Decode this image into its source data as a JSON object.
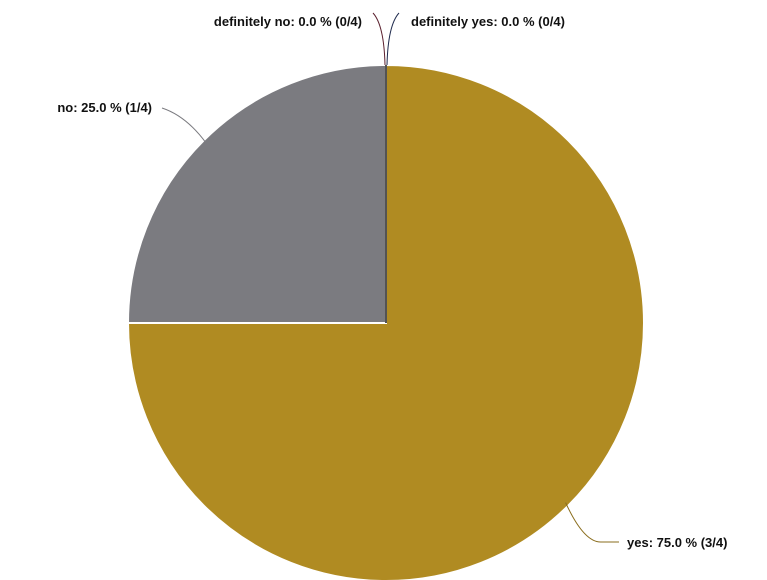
{
  "chart_data": {
    "type": "pie",
    "total": 4,
    "slices": [
      {
        "name": "yes",
        "value": 3,
        "percent": 75.0,
        "label": "yes: 75.0 % (3/4)",
        "color": "#b08b22"
      },
      {
        "name": "no",
        "value": 1,
        "percent": 25.0,
        "label": "no: 25.0 % (1/4)",
        "color": "#7b7b80"
      },
      {
        "name": "definitely no",
        "value": 0,
        "percent": 0.0,
        "label": "definitely no: 0.0 % (0/4)",
        "color": "#5a1f2d"
      },
      {
        "name": "definitely yes",
        "value": 0,
        "percent": 0.0,
        "label": "definitely yes: 0.0 % (0/4)",
        "color": "#1f2a4d"
      }
    ]
  }
}
